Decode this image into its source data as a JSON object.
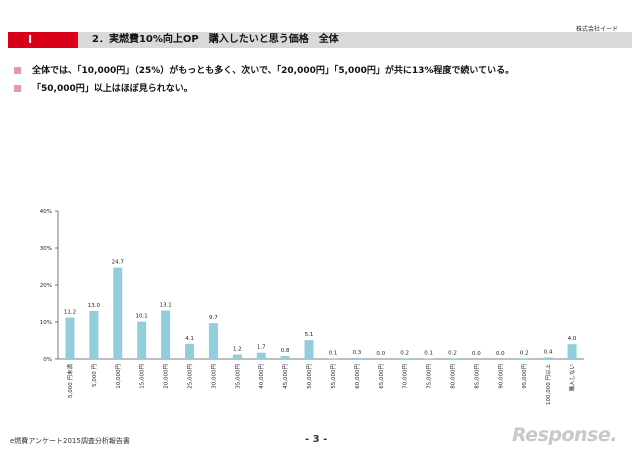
{
  "header": {
    "company": "株式会社イード",
    "section_mark": "Ⅰ",
    "title": "2．実燃費10%向上OP　購入したいと思う価格　全体"
  },
  "bullets": [
    "全体では、「10,000円」（25%）がもっとも多く、次いで、「20,000円」「5,000円」が共に13%程度で続いている。",
    "「50,000円」以上はほぼ見られない。"
  ],
  "chart_data": {
    "type": "bar",
    "categories": [
      "5,000 円未満",
      "5,000 円",
      "10,000円",
      "15,000円",
      "20,000円",
      "25,000円",
      "30,000円",
      "35,000円",
      "40,000円",
      "45,000円",
      "50,000円",
      "55,000円",
      "60,000円",
      "65,000円",
      "70,000円",
      "75,000円",
      "80,000円",
      "85,000円",
      "90,000円",
      "95,000円",
      "100,000 円以上",
      "購入しない"
    ],
    "values": [
      11.2,
      13.0,
      24.7,
      10.1,
      13.1,
      4.1,
      9.7,
      1.2,
      1.7,
      0.8,
      5.1,
      0.1,
      0.3,
      0.0,
      0.2,
      0.1,
      0.2,
      0.0,
      0.0,
      0.2,
      0.4,
      4.0
    ],
    "data_labels": [
      "11.2",
      "13.0",
      "24.7",
      "10.1",
      "13.1",
      "4.1",
      "9.7",
      "1.2",
      "1.7",
      "0.8",
      "5.1",
      "0.1",
      "0.3",
      "0.0",
      "0.2",
      "0.1",
      "0.2",
      "0.0",
      "0.0",
      "0.2",
      "0.4",
      "4.0"
    ],
    "yticks": [
      "0%",
      "10%",
      "20%",
      "30%",
      "40%"
    ],
    "ytick_values": [
      0,
      10,
      20,
      30,
      40
    ],
    "ylim": [
      0,
      40
    ],
    "bar_color": "#92cddc"
  },
  "footer": {
    "report": "e燃費アンケート2015調査分析報告書",
    "page": "- 3 -",
    "logo": "Response."
  }
}
